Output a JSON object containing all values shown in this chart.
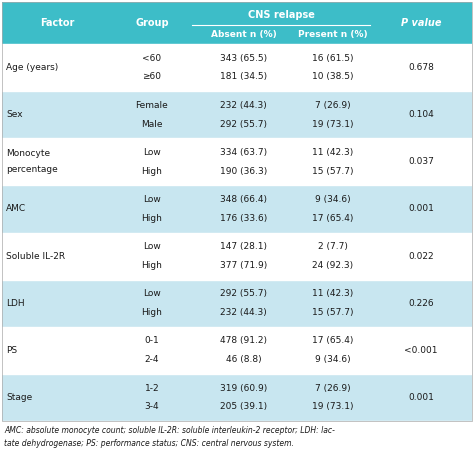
{
  "header_bg": "#3dbdc8",
  "row_bg_light": "#c8e6f0",
  "row_bg_white": "#ffffff",
  "header_text_color": "#ffffff",
  "body_text_color": "#1a1a1a",
  "footnote_text_color": "#1a1a1a",
  "header": {
    "col1": "Factor",
    "col2": "Group",
    "col3_main": "CNS relapse",
    "col3a": "Absent n (%)",
    "col3b": "Present n (%)",
    "col4": "P value"
  },
  "rows": [
    {
      "factor": "Age (years)",
      "groups": [
        "<60",
        "≥60"
      ],
      "absent": [
        "343 (65.5)",
        "181 (34.5)"
      ],
      "present": [
        "16 (61.5)",
        "10 (38.5)"
      ],
      "pvalue": "0.678",
      "bg": "white"
    },
    {
      "factor": "Sex",
      "groups": [
        "Female",
        "Male"
      ],
      "absent": [
        "232 (44.3)",
        "292 (55.7)"
      ],
      "present": [
        "7 (26.9)",
        "19 (73.1)"
      ],
      "pvalue": "0.104",
      "bg": "light"
    },
    {
      "factor": "Monocyte\npercentage",
      "groups": [
        "Low",
        "High"
      ],
      "absent": [
        "334 (63.7)",
        "190 (36.3)"
      ],
      "present": [
        "11 (42.3)",
        "15 (57.7)"
      ],
      "pvalue": "0.037",
      "bg": "white"
    },
    {
      "factor": "AMC",
      "groups": [
        "Low",
        "High"
      ],
      "absent": [
        "348 (66.4)",
        "176 (33.6)"
      ],
      "present": [
        "9 (34.6)",
        "17 (65.4)"
      ],
      "pvalue": "0.001",
      "bg": "light"
    },
    {
      "factor": "Soluble IL-2R",
      "groups": [
        "Low",
        "High"
      ],
      "absent": [
        "147 (28.1)",
        "377 (71.9)"
      ],
      "present": [
        "2 (7.7)",
        "24 (92.3)"
      ],
      "pvalue": "0.022",
      "bg": "white"
    },
    {
      "factor": "LDH",
      "groups": [
        "Low",
        "High"
      ],
      "absent": [
        "292 (55.7)",
        "232 (44.3)"
      ],
      "present": [
        "11 (42.3)",
        "15 (57.7)"
      ],
      "pvalue": "0.226",
      "bg": "light"
    },
    {
      "factor": "PS",
      "groups": [
        "0-1",
        "2-4"
      ],
      "absent": [
        "478 (91.2)",
        "46 (8.8)"
      ],
      "present": [
        "17 (65.4)",
        "9 (34.6)"
      ],
      "pvalue": "<0.001",
      "bg": "white"
    },
    {
      "factor": "Stage",
      "groups": [
        "1-2",
        "3-4"
      ],
      "absent": [
        "319 (60.9)",
        "205 (39.1)"
      ],
      "present": [
        "7 (26.9)",
        "19 (73.1)"
      ],
      "pvalue": "0.001",
      "bg": "light"
    }
  ],
  "footnote_line1": "AMC: absolute monocyte count; soluble IL-2R: soluble interleukin-2 receptor; LDH: lac-",
  "footnote_line2": "tate dehydrogenase; PS: performance status; CNS: central nervous system."
}
